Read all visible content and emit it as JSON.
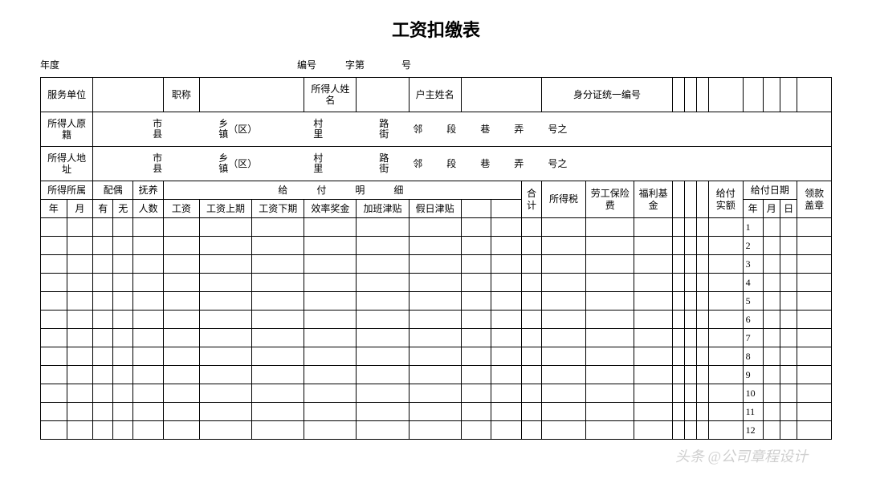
{
  "title": "工资扣缴表",
  "pre": {
    "year_label": "年度",
    "serial_label": "编号",
    "zi": "字第",
    "hao": "号"
  },
  "row1": {
    "c1": "服务单位",
    "c2": "职称",
    "c3": "所得人姓名",
    "c4": "户主姓名",
    "c5": "身分证统一编号"
  },
  "addr": {
    "r1": "所得人原籍",
    "r2": "所得人地址",
    "city": "市",
    "county": "县",
    "xiang": "乡",
    "zhen": "镇",
    "qu": "（区）",
    "cun": "村",
    "li": "里",
    "road": "路",
    "street": "街",
    "lin": "邻",
    "duan": "段",
    "xiang2": "巷",
    "nong": "弄",
    "haozhi": "号之"
  },
  "hdr": {
    "income_belong": "所得所属",
    "spouse": "配偶",
    "dependents": "抚养",
    "pay_detail": "给　　付　　明　　细",
    "tax": "所得税",
    "labor_ins": "劳工保险费",
    "welfare": "福利基金",
    "actual_pay": "给付实额",
    "pay_date": "给付日期",
    "stamp": "领款盖章",
    "year": "年",
    "month": "月",
    "has": "有",
    "none": "无",
    "count": "人数",
    "salary": "工资",
    "salary_prev": "工资上期",
    "salary_next": "工资下期",
    "eff_bonus": "效率奖金",
    "ot_allow": "加班津贴",
    "holiday_allow": "假日津贴",
    "total": "合计",
    "day": "日"
  },
  "months": [
    "1",
    "2",
    "3",
    "4",
    "5",
    "6",
    "7",
    "8",
    "9",
    "10",
    "11",
    "12"
  ],
  "watermark": "头条 @公司章程设计"
}
